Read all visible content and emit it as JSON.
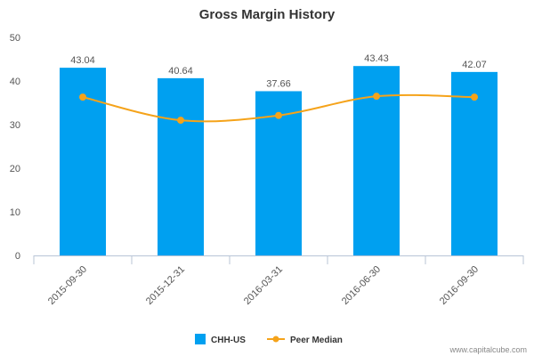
{
  "chart_data": {
    "type": "bar",
    "title": "Gross Margin History",
    "categories": [
      "2015-09-30",
      "2015-12-31",
      "2016-03-31",
      "2016-06-30",
      "2016-09-30"
    ],
    "series": [
      {
        "name": "CHH-US",
        "kind": "bar",
        "values": [
          43.04,
          40.64,
          37.66,
          43.43,
          42.07
        ],
        "labels": [
          "43.04",
          "40.64",
          "37.66",
          "43.43",
          "42.07"
        ]
      },
      {
        "name": "Peer Median",
        "kind": "line",
        "values": [
          36.3,
          31.0,
          32.1,
          36.5,
          36.3
        ]
      }
    ],
    "ylim": [
      0,
      50
    ],
    "yticks": [
      0,
      10,
      20,
      30,
      40,
      50
    ],
    "xlabel": "",
    "ylabel": "",
    "legend_position": "bottom",
    "grid": false
  },
  "colors": {
    "bar": "#00A0F0",
    "line": "#F5A31A"
  },
  "credit": "www.capitalcube.com"
}
